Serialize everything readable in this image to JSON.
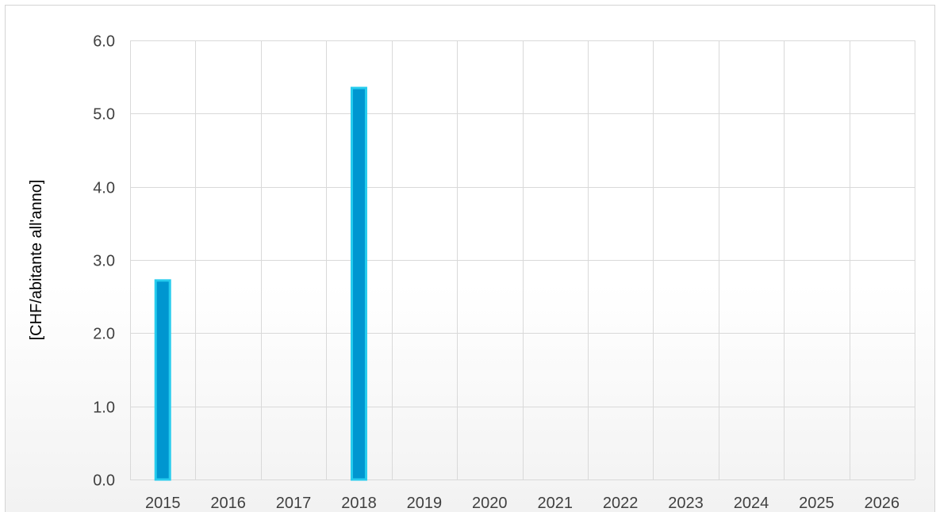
{
  "chart_data": {
    "type": "bar",
    "title": "",
    "xlabel": "",
    "ylabel": "[CHF/abitante all'anno]",
    "categories": [
      "2015",
      "2016",
      "2017",
      "2018",
      "2019",
      "2020",
      "2021",
      "2022",
      "2023",
      "2024",
      "2025",
      "2026"
    ],
    "values": [
      2.72,
      null,
      null,
      5.35,
      null,
      null,
      null,
      null,
      null,
      null,
      null,
      null
    ],
    "ylim": [
      0,
      6
    ],
    "yticks": [
      "0.0",
      "1.0",
      "2.0",
      "3.0",
      "4.0",
      "5.0",
      "6.0"
    ],
    "grid": "both",
    "legend": "none",
    "colors": {
      "bar_fill": "#0096D0",
      "bar_stroke": "#26CCEE",
      "grid": "#d9d9d9",
      "tick_text": "#404040"
    }
  }
}
